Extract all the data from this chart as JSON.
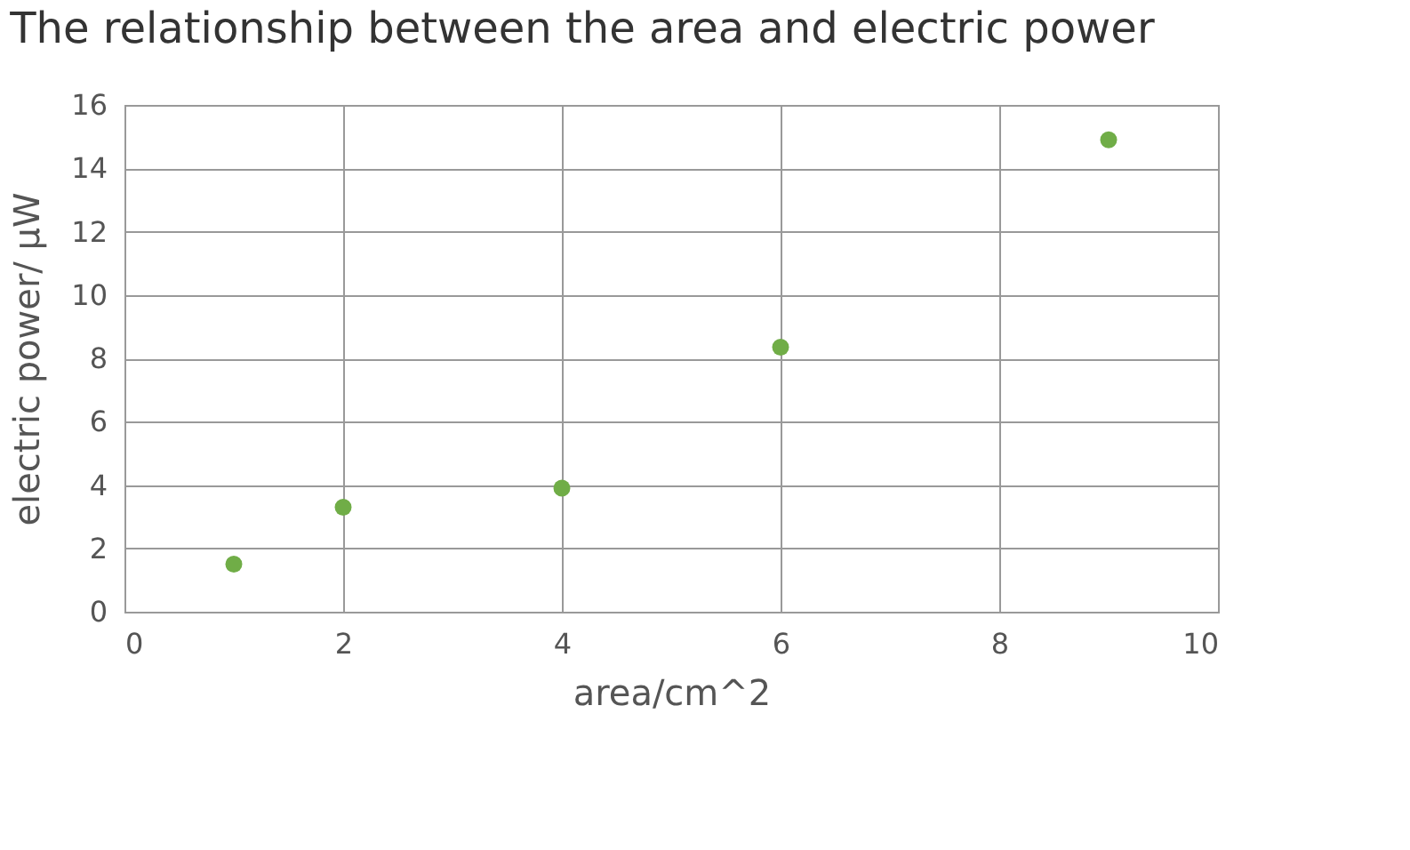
{
  "chart_data": {
    "type": "scatter",
    "title": "The relationship between the area and electric power",
    "xlabel": "area/cm^2",
    "ylabel": "electric power/ μW",
    "x": [
      1,
      2,
      4,
      6,
      9
    ],
    "series": [
      {
        "color": "#70ad47",
        "values": [
          1.5,
          3.3,
          3.9,
          8.35,
          14.9
        ]
      }
    ],
    "xlim": [
      0,
      10
    ],
    "xticks": [
      0,
      2,
      4,
      6,
      8,
      10
    ],
    "ylim": [
      0,
      16
    ],
    "yticks": [
      0,
      2,
      4,
      6,
      8,
      10,
      12,
      14,
      16
    ],
    "grid": true,
    "marker": "circle"
  }
}
